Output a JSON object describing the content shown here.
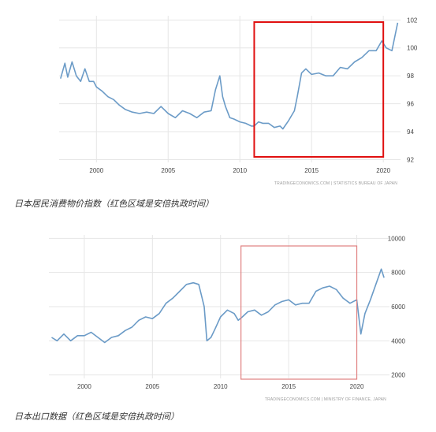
{
  "chart_data": [
    {
      "type": "line",
      "caption": "日本居民消费物价指数（红色区域是安倍执政时间）",
      "source": "TRADINGECONOMICS.COM | STATISTICS BUREAU OF JAPAN",
      "x_ticks": [
        "2000",
        "2005",
        "2010",
        "2015",
        "2020"
      ],
      "y_ticks": [
        "92",
        "94",
        "96",
        "98",
        "100",
        "102"
      ],
      "xlim": [
        1997.4,
        2021.2
      ],
      "ylim": [
        91.8,
        102.3
      ],
      "grid": true,
      "line_color": "#6b9bc7",
      "highlight": {
        "x_range": [
          2011.0,
          2020.0
        ],
        "color": "#e01010"
      },
      "series": [
        {
          "x": [
            1997.5,
            1997.8,
            1998.0,
            1998.3,
            1998.6,
            1998.9,
            1999.2,
            1999.5,
            1999.8,
            2000.0,
            2000.4,
            2000.8,
            2001.2,
            2001.6,
            2002.0,
            2002.5,
            2003.0,
            2003.5,
            2004.0,
            2004.5,
            2005.0,
            2005.5,
            2006.0,
            2006.5,
            2007.0,
            2007.5,
            2008.0,
            2008.3,
            2008.6,
            2008.8,
            2009.0,
            2009.3,
            2009.6,
            2010.0,
            2010.4,
            2010.8,
            2011.0,
            2011.3,
            2011.6,
            2012.0,
            2012.4,
            2012.8,
            2013.0,
            2013.4,
            2013.8,
            2014.0,
            2014.3,
            2014.6,
            2015.0,
            2015.5,
            2016.0,
            2016.5,
            2017.0,
            2017.5,
            2018.0,
            2018.5,
            2019.0,
            2019.5,
            2019.9,
            2020.2,
            2020.6,
            2021.0
          ],
          "y": [
            97.8,
            98.9,
            97.9,
            99.0,
            98.0,
            97.6,
            98.5,
            97.6,
            97.6,
            97.2,
            96.9,
            96.5,
            96.3,
            95.9,
            95.6,
            95.4,
            95.3,
            95.4,
            95.3,
            95.8,
            95.3,
            95.0,
            95.5,
            95.3,
            95.0,
            95.4,
            95.5,
            97.0,
            98.0,
            96.5,
            95.8,
            95.0,
            94.9,
            94.7,
            94.6,
            94.4,
            94.4,
            94.7,
            94.6,
            94.6,
            94.3,
            94.4,
            94.2,
            94.8,
            95.5,
            96.5,
            98.2,
            98.5,
            98.1,
            98.2,
            98.0,
            98.0,
            98.6,
            98.5,
            99.0,
            99.3,
            99.8,
            99.8,
            100.5,
            100.0,
            99.8,
            101.8
          ]
        }
      ]
    },
    {
      "type": "line",
      "caption": "日本出口数据（红色区域是安倍执政时间）",
      "source": "TRADINGECONOMICS.COM | MINISTRY OF FINANCE, JAPAN",
      "x_ticks": [
        "2000",
        "2005",
        "2010",
        "2015",
        "2020"
      ],
      "y_ticks": [
        "2000",
        "4000",
        "6000",
        "8000",
        "10000"
      ],
      "xlim": [
        1997.4,
        2022.4
      ],
      "ylim": [
        1800,
        10200
      ],
      "grid": true,
      "line_color": "#6b9bc7",
      "highlight": {
        "x_range": [
          2011.5,
          2020.0
        ],
        "color": "#e08080"
      },
      "series": [
        {
          "x": [
            1997.6,
            1998.0,
            1998.5,
            1999.0,
            1999.5,
            2000.0,
            2000.5,
            2001.0,
            2001.5,
            2002.0,
            2002.5,
            2003.0,
            2003.5,
            2004.0,
            2004.5,
            2005.0,
            2005.5,
            2006.0,
            2006.5,
            2007.0,
            2007.5,
            2008.0,
            2008.4,
            2008.8,
            2009.0,
            2009.3,
            2009.6,
            2010.0,
            2010.5,
            2011.0,
            2011.3,
            2011.6,
            2012.0,
            2012.5,
            2013.0,
            2013.5,
            2014.0,
            2014.5,
            2015.0,
            2015.5,
            2016.0,
            2016.5,
            2017.0,
            2017.5,
            2018.0,
            2018.5,
            2019.0,
            2019.5,
            2020.0,
            2020.3,
            2020.6,
            2021.0,
            2021.4,
            2021.8,
            2022.0
          ],
          "y": [
            4200,
            4000,
            4400,
            4000,
            4300,
            4300,
            4500,
            4200,
            3900,
            4200,
            4300,
            4600,
            4800,
            5200,
            5400,
            5300,
            5600,
            6200,
            6500,
            6900,
            7300,
            7400,
            7300,
            6000,
            4000,
            4200,
            4700,
            5400,
            5800,
            5600,
            5200,
            5400,
            5700,
            5800,
            5500,
            5700,
            6100,
            6300,
            6400,
            6100,
            6200,
            6200,
            6900,
            7100,
            7200,
            7000,
            6500,
            6200,
            6400,
            4400,
            5600,
            6400,
            7300,
            8200,
            7700
          ]
        }
      ]
    }
  ]
}
